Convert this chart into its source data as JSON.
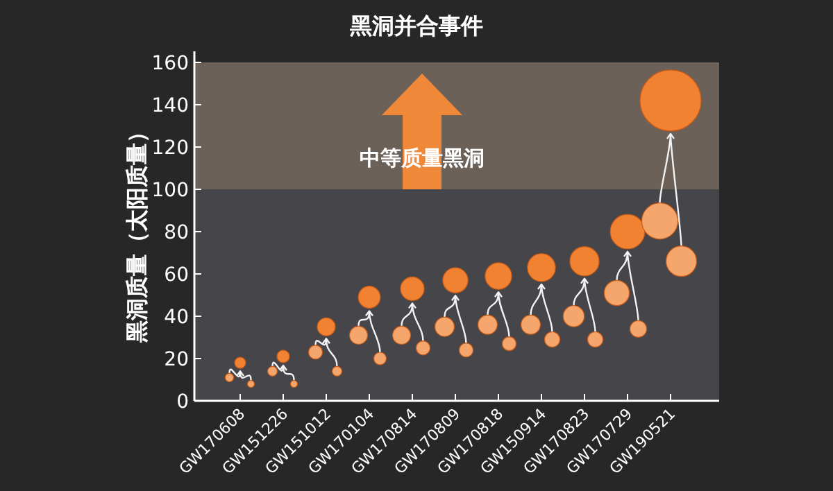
{
  "chart_data": {
    "type": "bubble",
    "title": "黑洞并合事件",
    "ylabel": "黑洞质量（太阳质量）",
    "categories": [
      "GW170608",
      "GW151226",
      "GW151012",
      "GW170104",
      "GW170814",
      "GW170809",
      "GW170818",
      "GW150914",
      "GW170823",
      "GW170729",
      "GW190521"
    ],
    "series": [
      {
        "color": "#f08232",
        "values": [
          18,
          21,
          35,
          49,
          53,
          57,
          59,
          63,
          66,
          80,
          142
        ],
        "sizes": [
          0.033,
          0.042,
          0.087,
          0.13,
          0.15,
          0.17,
          0.19,
          0.21,
          0.23,
          0.32,
          1
        ]
      },
      {
        "color": "#f4a66c",
        "values": [
          11,
          14,
          23,
          31,
          31,
          35,
          36,
          36,
          40,
          51,
          85
        ],
        "sizes": [
          0.019,
          0.025,
          0.052,
          0.087,
          0.087,
          0.1,
          0.1,
          0.1,
          0.12,
          0.17,
          0.35
        ]
      },
      {
        "color": "#f4a66c",
        "values": [
          8,
          8,
          14,
          20,
          25,
          24,
          27,
          29,
          29,
          34,
          66
        ],
        "sizes": [
          0.013,
          0.013,
          0.025,
          0.042,
          0.052,
          0.052,
          0.052,
          0.063,
          0.063,
          0.074,
          0.25
        ]
      }
    ],
    "ylim": [
      0,
      160
    ],
    "yticks": [
      0,
      20,
      40,
      60,
      80,
      100,
      120,
      140,
      160
    ],
    "bands": [
      {
        "axis": "y",
        "from": 100,
        "to": 160,
        "label": "中等质量黑洞",
        "color": "#6b6159"
      }
    ],
    "grid": false
  }
}
